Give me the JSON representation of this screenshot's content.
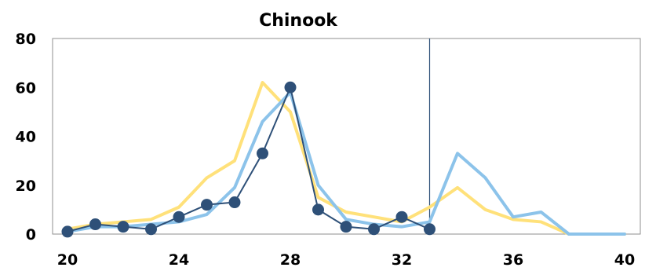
{
  "chart_data": {
    "type": "line",
    "title": "Chinook",
    "xlabel": "",
    "ylabel": "",
    "xlim": [
      20,
      40
    ],
    "ylim": [
      0,
      80
    ],
    "x_ticks": [
      20,
      24,
      28,
      32,
      36,
      40
    ],
    "y_ticks": [
      0,
      20,
      40,
      60,
      80
    ],
    "grid": false,
    "vertical_reference_x": 33,
    "series": [
      {
        "color": "#ffe17a",
        "style": "line",
        "x": [
          20,
          21,
          22,
          23,
          24,
          25,
          26,
          27,
          28,
          29,
          30,
          31,
          32,
          33,
          34,
          35,
          36,
          37,
          38,
          39,
          40
        ],
        "y": [
          2,
          4,
          5,
          6,
          11,
          23,
          30,
          62,
          50,
          15,
          9,
          7,
          5,
          11,
          19,
          10,
          6,
          5,
          0,
          0,
          0
        ]
      },
      {
        "color": "#8cc3ea",
        "style": "line",
        "x": [
          20,
          21,
          22,
          23,
          24,
          25,
          26,
          27,
          28,
          29,
          30,
          31,
          32,
          33,
          34,
          35,
          36,
          37,
          38,
          39,
          40
        ],
        "y": [
          1,
          3,
          3,
          4,
          5,
          8,
          19,
          46,
          58,
          20,
          6,
          4,
          3,
          5,
          33,
          23,
          7,
          9,
          0,
          0,
          0
        ]
      },
      {
        "color": "#2e5078",
        "style": "line-marker",
        "x": [
          20,
          21,
          22,
          23,
          24,
          25,
          26,
          27,
          28,
          29,
          30,
          31,
          32,
          33
        ],
        "y": [
          1,
          4,
          3,
          2,
          7,
          12,
          13,
          33,
          60,
          10,
          3,
          2,
          7,
          2
        ]
      }
    ]
  }
}
